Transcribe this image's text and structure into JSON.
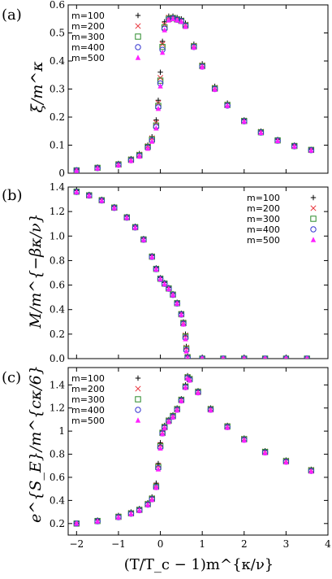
{
  "figure": {
    "x_axis_label": "(T/T_c − 1)m^{κ/ν}",
    "x_ticks": [
      "−2",
      "−1",
      "0",
      "1",
      "2",
      "3",
      "4"
    ],
    "x_tick_values": [
      -2,
      -1,
      0,
      1,
      2,
      3,
      4
    ],
    "xlim": [
      -2.2,
      4
    ]
  },
  "chart_data": [
    {
      "panel_label": "(a)",
      "type": "scatter",
      "ylabel": "ξ/m^κ",
      "xlim": [
        -2.2,
        4
      ],
      "ylim": [
        0,
        0.6
      ],
      "y_ticks": [
        "0",
        "0.1",
        "0.2",
        "0.3",
        "0.4",
        "0.5",
        "0.6"
      ],
      "y_tick_values": [
        0,
        0.1,
        0.2,
        0.3,
        0.4,
        0.5,
        0.6
      ],
      "legend_position": "top-left",
      "series": [
        {
          "name": "m=100",
          "marker": "plus",
          "color": "#000000",
          "x": [
            -2.0,
            -1.5,
            -1.0,
            -0.7,
            -0.5,
            -0.3,
            -0.2,
            -0.1,
            -0.05,
            0.0,
            0.05,
            0.1,
            0.2,
            0.3,
            0.4,
            0.5,
            0.6,
            0.8,
            1.0,
            1.3,
            1.6,
            2.0,
            2.4,
            2.8,
            3.2,
            3.6
          ],
          "y": [
            0.012,
            0.022,
            0.035,
            0.052,
            0.07,
            0.1,
            0.13,
            0.19,
            0.26,
            0.36,
            0.47,
            0.54,
            0.56,
            0.56,
            0.555,
            0.55,
            0.535,
            0.46,
            0.39,
            0.31,
            0.25,
            0.19,
            0.15,
            0.12,
            0.1,
            0.085
          ]
        },
        {
          "name": "m=200",
          "marker": "cross",
          "color": "#e8333b",
          "x": [
            -2.0,
            -1.5,
            -1.0,
            -0.7,
            -0.5,
            -0.3,
            -0.2,
            -0.1,
            -0.05,
            0.0,
            0.05,
            0.1,
            0.2,
            0.3,
            0.4,
            0.5,
            0.6,
            0.8,
            1.0,
            1.3,
            1.6,
            2.0,
            2.4,
            2.8,
            3.2,
            3.6
          ],
          "y": [
            0.011,
            0.02,
            0.033,
            0.05,
            0.067,
            0.097,
            0.125,
            0.18,
            0.25,
            0.34,
            0.46,
            0.53,
            0.555,
            0.555,
            0.55,
            0.545,
            0.53,
            0.455,
            0.385,
            0.305,
            0.245,
            0.188,
            0.148,
            0.118,
            0.098,
            0.084
          ]
        },
        {
          "name": "m=300",
          "marker": "square",
          "color": "#2a8a2a",
          "x": [
            -2.0,
            -1.5,
            -1.0,
            -0.7,
            -0.5,
            -0.3,
            -0.2,
            -0.1,
            -0.05,
            0.0,
            0.05,
            0.1,
            0.2,
            0.3,
            0.4,
            0.5,
            0.6,
            0.8,
            1.0,
            1.3,
            1.6,
            2.0,
            2.4,
            2.8,
            3.2,
            3.6
          ],
          "y": [
            0.01,
            0.019,
            0.031,
            0.048,
            0.064,
            0.094,
            0.12,
            0.17,
            0.24,
            0.33,
            0.45,
            0.52,
            0.55,
            0.553,
            0.548,
            0.543,
            0.527,
            0.452,
            0.382,
            0.302,
            0.243,
            0.186,
            0.146,
            0.117,
            0.097,
            0.083
          ]
        },
        {
          "name": "m=400",
          "marker": "circle",
          "color": "#3535d0",
          "x": [
            -2.0,
            -1.5,
            -1.0,
            -0.7,
            -0.5,
            -0.3,
            -0.2,
            -0.1,
            -0.05,
            0.0,
            0.05,
            0.1,
            0.2,
            0.3,
            0.4,
            0.5,
            0.6,
            0.8,
            1.0,
            1.3,
            1.6,
            2.0,
            2.4,
            2.8,
            3.2,
            3.6
          ],
          "y": [
            0.01,
            0.018,
            0.03,
            0.046,
            0.062,
            0.091,
            0.117,
            0.165,
            0.235,
            0.32,
            0.44,
            0.515,
            0.548,
            0.552,
            0.547,
            0.542,
            0.525,
            0.45,
            0.38,
            0.3,
            0.241,
            0.185,
            0.145,
            0.116,
            0.096,
            0.082
          ]
        },
        {
          "name": "m=500",
          "marker": "triangle",
          "color": "#ff22ff",
          "x": [
            -2.0,
            -1.5,
            -1.0,
            -0.7,
            -0.5,
            -0.3,
            -0.2,
            -0.1,
            -0.05,
            0.0,
            0.05,
            0.1,
            0.2,
            0.3,
            0.4,
            0.5,
            0.6,
            0.8,
            1.0,
            1.3,
            1.6,
            2.0,
            2.4,
            2.8,
            3.2,
            3.6
          ],
          "y": [
            0.009,
            0.017,
            0.028,
            0.044,
            0.06,
            0.088,
            0.113,
            0.16,
            0.23,
            0.31,
            0.43,
            0.51,
            0.545,
            0.55,
            0.545,
            0.54,
            0.522,
            0.448,
            0.378,
            0.298,
            0.24,
            0.184,
            0.144,
            0.115,
            0.095,
            0.081
          ]
        }
      ]
    },
    {
      "panel_label": "(b)",
      "type": "scatter",
      "ylabel": "M/m^{−βκ/ν}",
      "xlim": [
        -2.2,
        4
      ],
      "ylim": [
        0,
        1.4
      ],
      "y_ticks": [
        "0.0",
        "0.2",
        "0.4",
        "0.6",
        "0.8",
        "1.0",
        "1.2",
        "1.4"
      ],
      "y_tick_values": [
        0,
        0.2,
        0.4,
        0.6,
        0.8,
        1.0,
        1.2,
        1.4
      ],
      "legend_position": "top-right",
      "series": [
        {
          "name": "m=100",
          "marker": "plus",
          "color": "#000000",
          "x": [
            -2.0,
            -1.7,
            -1.4,
            -1.1,
            -0.8,
            -0.6,
            -0.4,
            -0.2,
            -0.1,
            0.0,
            0.1,
            0.2,
            0.3,
            0.4,
            0.5,
            0.55,
            0.6,
            0.62,
            0.65,
            1.0,
            1.5,
            2.0,
            2.5,
            3.0,
            3.5
          ],
          "y": [
            1.37,
            1.34,
            1.3,
            1.24,
            1.16,
            1.08,
            0.98,
            0.84,
            0.74,
            0.66,
            0.62,
            0.58,
            0.53,
            0.46,
            0.37,
            0.3,
            0.2,
            0.1,
            0.02,
            0.0,
            0.0,
            0.0,
            0.0,
            0.0,
            0.0
          ]
        },
        {
          "name": "m=200",
          "marker": "cross",
          "color": "#e8333b",
          "x": [
            -2.0,
            -1.7,
            -1.4,
            -1.1,
            -0.8,
            -0.6,
            -0.4,
            -0.2,
            -0.1,
            0.0,
            0.1,
            0.2,
            0.3,
            0.4,
            0.5,
            0.55,
            0.6,
            0.62,
            0.65,
            1.0,
            1.5,
            2.0,
            2.5,
            3.0,
            3.5
          ],
          "y": [
            1.365,
            1.335,
            1.295,
            1.235,
            1.155,
            1.075,
            0.975,
            0.835,
            0.735,
            0.655,
            0.615,
            0.575,
            0.525,
            0.455,
            0.365,
            0.295,
            0.19,
            0.09,
            0.015,
            0.0,
            0.0,
            0.0,
            0.0,
            0.0,
            0.0
          ]
        },
        {
          "name": "m=300",
          "marker": "square",
          "color": "#2a8a2a",
          "x": [
            -2.0,
            -1.7,
            -1.4,
            -1.1,
            -0.8,
            -0.6,
            -0.4,
            -0.2,
            -0.1,
            0.0,
            0.1,
            0.2,
            0.3,
            0.4,
            0.5,
            0.55,
            0.6,
            0.62,
            0.65,
            1.0,
            1.5,
            2.0,
            2.5,
            3.0,
            3.5
          ],
          "y": [
            1.362,
            1.332,
            1.292,
            1.232,
            1.152,
            1.072,
            0.972,
            0.832,
            0.732,
            0.652,
            0.612,
            0.572,
            0.522,
            0.452,
            0.362,
            0.29,
            0.18,
            0.08,
            0.01,
            0.0,
            0.0,
            0.0,
            0.0,
            0.0,
            0.0
          ]
        },
        {
          "name": "m=400",
          "marker": "circle",
          "color": "#3535d0",
          "x": [
            -2.0,
            -1.7,
            -1.4,
            -1.1,
            -0.8,
            -0.6,
            -0.4,
            -0.2,
            -0.1,
            0.0,
            0.1,
            0.2,
            0.3,
            0.4,
            0.5,
            0.55,
            0.6,
            0.62,
            0.65,
            1.0,
            1.5,
            2.0,
            2.5,
            3.0,
            3.5
          ],
          "y": [
            1.36,
            1.33,
            1.29,
            1.23,
            1.15,
            1.07,
            0.97,
            0.83,
            0.73,
            0.65,
            0.61,
            0.57,
            0.52,
            0.45,
            0.36,
            0.285,
            0.17,
            0.07,
            0.008,
            0.0,
            0.0,
            0.0,
            0.0,
            0.0,
            0.0
          ]
        },
        {
          "name": "m=500",
          "marker": "triangle",
          "color": "#ff22ff",
          "x": [
            -2.0,
            -1.7,
            -1.4,
            -1.1,
            -0.8,
            -0.6,
            -0.4,
            -0.2,
            -0.1,
            0.0,
            0.1,
            0.2,
            0.3,
            0.4,
            0.5,
            0.55,
            0.6,
            0.62,
            0.65,
            1.0,
            1.5,
            2.0,
            2.5,
            3.0,
            3.5
          ],
          "y": [
            1.358,
            1.328,
            1.288,
            1.228,
            1.148,
            1.068,
            0.968,
            0.828,
            0.728,
            0.648,
            0.608,
            0.568,
            0.518,
            0.448,
            0.358,
            0.28,
            0.16,
            0.06,
            0.005,
            0.0,
            0.0,
            0.0,
            0.0,
            0.0,
            0.0
          ]
        }
      ]
    },
    {
      "panel_label": "(c)",
      "type": "scatter",
      "ylabel": "e^{S_E}/m^{cκ/6}",
      "xlim": [
        -2.2,
        4
      ],
      "ylim": [
        0.1,
        1.55
      ],
      "y_ticks": [
        "0.2",
        "0.4",
        "0.6",
        "0.8",
        "1",
        "1.2",
        "1.4"
      ],
      "y_tick_values": [
        0.2,
        0.4,
        0.6,
        0.8,
        1.0,
        1.2,
        1.4
      ],
      "legend_position": "top-left",
      "series": [
        {
          "name": "m=100",
          "marker": "plus",
          "color": "#000000",
          "x": [
            -2.0,
            -1.5,
            -1.0,
            -0.7,
            -0.5,
            -0.3,
            -0.2,
            -0.1,
            -0.05,
            0.0,
            0.05,
            0.1,
            0.2,
            0.3,
            0.4,
            0.5,
            0.6,
            0.65,
            0.7,
            0.9,
            1.2,
            1.6,
            2.0,
            2.5,
            3.0,
            3.6
          ],
          "y": [
            0.2,
            0.23,
            0.27,
            0.3,
            0.33,
            0.38,
            0.43,
            0.55,
            0.72,
            0.9,
            1.0,
            1.05,
            1.1,
            1.14,
            1.2,
            1.28,
            1.4,
            1.48,
            1.46,
            1.35,
            1.2,
            1.05,
            0.94,
            0.83,
            0.75,
            0.67
          ]
        },
        {
          "name": "m=200",
          "marker": "cross",
          "color": "#e8333b",
          "x": [
            -2.0,
            -1.5,
            -1.0,
            -0.7,
            -0.5,
            -0.3,
            -0.2,
            -0.1,
            -0.05,
            0.0,
            0.05,
            0.1,
            0.2,
            0.3,
            0.4,
            0.5,
            0.6,
            0.65,
            0.7,
            0.9,
            1.2,
            1.6,
            2.0,
            2.5,
            3.0,
            3.6
          ],
          "y": [
            0.2,
            0.225,
            0.262,
            0.292,
            0.322,
            0.372,
            0.42,
            0.53,
            0.7,
            0.88,
            0.99,
            1.04,
            1.095,
            1.135,
            1.195,
            1.275,
            1.39,
            1.47,
            1.455,
            1.345,
            1.195,
            1.045,
            0.935,
            0.825,
            0.745,
            0.665
          ]
        },
        {
          "name": "m=300",
          "marker": "square",
          "color": "#2a8a2a",
          "x": [
            -2.0,
            -1.5,
            -1.0,
            -0.7,
            -0.5,
            -0.3,
            -0.2,
            -0.1,
            -0.05,
            0.0,
            0.05,
            0.1,
            0.2,
            0.3,
            0.4,
            0.5,
            0.6,
            0.65,
            0.7,
            0.9,
            1.2,
            1.6,
            2.0,
            2.5,
            3.0,
            3.6
          ],
          "y": [
            0.2,
            0.222,
            0.258,
            0.288,
            0.318,
            0.367,
            0.415,
            0.52,
            0.69,
            0.87,
            0.985,
            1.035,
            1.09,
            1.13,
            1.19,
            1.27,
            1.385,
            1.465,
            1.45,
            1.34,
            1.19,
            1.04,
            0.93,
            0.82,
            0.74,
            0.66
          ]
        },
        {
          "name": "m=400",
          "marker": "circle",
          "color": "#3535d0",
          "x": [
            -2.0,
            -1.5,
            -1.0,
            -0.7,
            -0.5,
            -0.3,
            -0.2,
            -0.1,
            -0.05,
            0.0,
            0.05,
            0.1,
            0.2,
            0.3,
            0.4,
            0.5,
            0.6,
            0.65,
            0.7,
            0.9,
            1.2,
            1.6,
            2.0,
            2.5,
            3.0,
            3.6
          ],
          "y": [
            0.2,
            0.22,
            0.255,
            0.285,
            0.315,
            0.363,
            0.41,
            0.515,
            0.68,
            0.86,
            0.98,
            1.03,
            1.085,
            1.125,
            1.185,
            1.265,
            1.38,
            1.46,
            1.445,
            1.335,
            1.185,
            1.035,
            0.925,
            0.815,
            0.735,
            0.655
          ]
        },
        {
          "name": "m=500",
          "marker": "triangle",
          "color": "#ff22ff",
          "x": [
            -2.0,
            -1.5,
            -1.0,
            -0.7,
            -0.5,
            -0.3,
            -0.2,
            -0.1,
            -0.05,
            0.0,
            0.05,
            0.1,
            0.2,
            0.3,
            0.4,
            0.5,
            0.6,
            0.65,
            0.7,
            0.9,
            1.2,
            1.6,
            2.0,
            2.5,
            3.0,
            3.6
          ],
          "y": [
            0.2,
            0.218,
            0.252,
            0.282,
            0.312,
            0.36,
            0.405,
            0.51,
            0.67,
            0.85,
            0.975,
            1.025,
            1.08,
            1.12,
            1.18,
            1.26,
            1.375,
            1.455,
            1.44,
            1.33,
            1.18,
            1.03,
            0.92,
            0.81,
            0.73,
            0.65
          ]
        }
      ]
    }
  ]
}
